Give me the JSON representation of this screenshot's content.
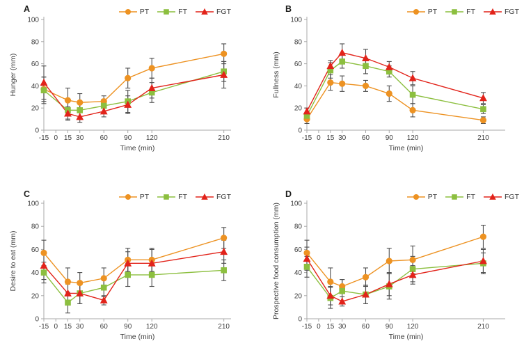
{
  "figure": {
    "legend": [
      "PT",
      "FT",
      "FGT"
    ],
    "xlabel": "Time (min)",
    "x_ticks": [
      -15,
      0,
      15,
      30,
      60,
      90,
      120,
      210
    ],
    "y_ticks": [
      0,
      20,
      40,
      60,
      80,
      100
    ]
  },
  "colors": {
    "PT": "#ed9222",
    "FT": "#8cbf3f",
    "FGT": "#e2231a",
    "error_bar": "#4d4d4d",
    "axis": "#a8a8a8",
    "text": "#3d3d3d"
  },
  "markers": {
    "PT": "circle",
    "FT": "square",
    "FGT": "triangle"
  },
  "chart_data": [
    {
      "type": "line",
      "panel": "A",
      "ylabel": "Hunger (mm)",
      "xlabel": "Time (min)",
      "x": [
        -15,
        15,
        30,
        60,
        90,
        120,
        210
      ],
      "xlim": [
        -15,
        219
      ],
      "ylim": [
        0,
        100
      ],
      "series": [
        {
          "name": "PT",
          "values": [
            37,
            27,
            25,
            26,
            47,
            56,
            69
          ],
          "errors": [
            11,
            11,
            8,
            5,
            9,
            9,
            9
          ]
        },
        {
          "name": "FT",
          "values": [
            36,
            18,
            18,
            22,
            26,
            34,
            53
          ],
          "errors": [
            12,
            8,
            7,
            6,
            10,
            9,
            9
          ]
        },
        {
          "name": "FGT",
          "values": [
            43,
            15,
            12,
            17,
            23,
            38,
            50
          ],
          "errors": [
            15,
            6,
            5,
            5,
            8,
            9,
            12
          ]
        }
      ]
    },
    {
      "type": "line",
      "panel": "B",
      "ylabel": "Fullness (mm)",
      "xlabel": "Time (min)",
      "x": [
        -15,
        15,
        30,
        60,
        90,
        120,
        210
      ],
      "xlim": [
        -15,
        238
      ],
      "ylim": [
        0,
        100
      ],
      "series": [
        {
          "name": "PT",
          "values": [
            10,
            43,
            42,
            40,
            33,
            18,
            9
          ],
          "errors": [
            4,
            7,
            7,
            5,
            7,
            6,
            3
          ]
        },
        {
          "name": "FT",
          "values": [
            13,
            54,
            62,
            58,
            53,
            32,
            19
          ],
          "errors": [
            3,
            7,
            6,
            7,
            5,
            8,
            4
          ]
        },
        {
          "name": "FGT",
          "values": [
            17,
            58,
            70,
            65,
            57,
            47,
            29
          ],
          "errors": [
            3,
            5,
            8,
            8,
            5,
            6,
            5
          ]
        }
      ]
    },
    {
      "type": "line",
      "panel": "C",
      "ylabel": "Desire to eat (mm)",
      "xlabel": "Time (min)",
      "x": [
        -15,
        15,
        30,
        60,
        90,
        120,
        210
      ],
      "xlim": [
        -15,
        219
      ],
      "ylim": [
        0,
        100
      ],
      "series": [
        {
          "name": "PT",
          "values": [
            57,
            32,
            31,
            35,
            51,
            51,
            70
          ],
          "errors": [
            11,
            12,
            9,
            9,
            10,
            10,
            9
          ]
        },
        {
          "name": "FT",
          "values": [
            40,
            14,
            22,
            27,
            38,
            38,
            42
          ],
          "errors": [
            9,
            9,
            9,
            8,
            10,
            10,
            9
          ]
        },
        {
          "name": "FGT",
          "values": [
            46,
            22,
            22,
            16,
            48,
            48,
            58
          ],
          "errors": [
            12,
            8,
            9,
            4,
            10,
            12,
            10
          ]
        }
      ]
    },
    {
      "type": "line",
      "panel": "D",
      "ylabel": "Prospective food consumption (mm)",
      "xlabel": "Time (min)",
      "x": [
        -15,
        15,
        30,
        60,
        90,
        120,
        210
      ],
      "xlim": [
        -15,
        238
      ],
      "ylim": [
        0,
        100
      ],
      "series": [
        {
          "name": "PT",
          "values": [
            57,
            32,
            28,
            36,
            50,
            51,
            71
          ],
          "errors": [
            11,
            12,
            6,
            8,
            11,
            12,
            10
          ]
        },
        {
          "name": "FT",
          "values": [
            45,
            18,
            24,
            21,
            28,
            43,
            48
          ],
          "errors": [
            9,
            9,
            10,
            8,
            11,
            11,
            9
          ]
        },
        {
          "name": "FGT",
          "values": [
            52,
            20,
            15,
            21,
            30,
            38,
            50
          ],
          "errors": [
            10,
            8,
            4,
            8,
            10,
            8,
            10
          ]
        }
      ]
    }
  ]
}
